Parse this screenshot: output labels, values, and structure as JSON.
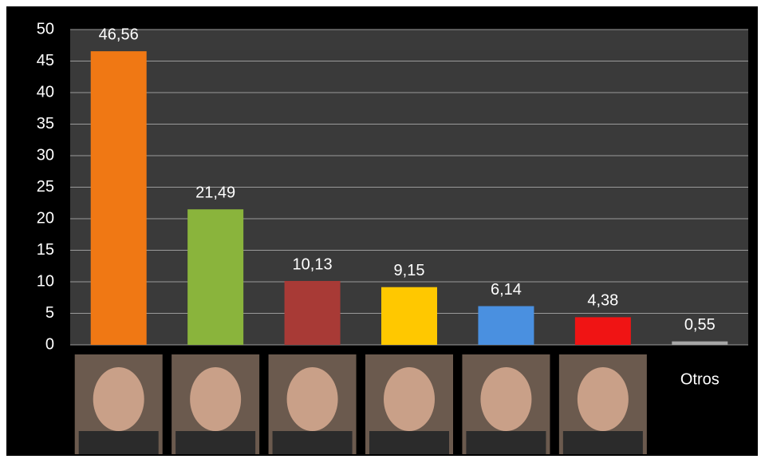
{
  "chart_data": {
    "type": "bar",
    "categories": [
      null,
      null,
      null,
      null,
      null,
      null,
      "Otros"
    ],
    "values": [
      46.56,
      21.49,
      10.13,
      9.15,
      6.14,
      4.38,
      0.55
    ],
    "value_labels": [
      "46,56",
      "21,49",
      "10,13",
      "9,15",
      "6,14",
      "4,38",
      "0,55"
    ],
    "colors": [
      "#f07814",
      "#8ab43c",
      "#a83a36",
      "#ffc800",
      "#4a90e0",
      "#f01414",
      "#a6a6a6"
    ],
    "ylim": [
      0,
      50
    ],
    "yticks": [
      0,
      5,
      10,
      15,
      20,
      25,
      30,
      35,
      40,
      45,
      50
    ],
    "grid": true
  }
}
